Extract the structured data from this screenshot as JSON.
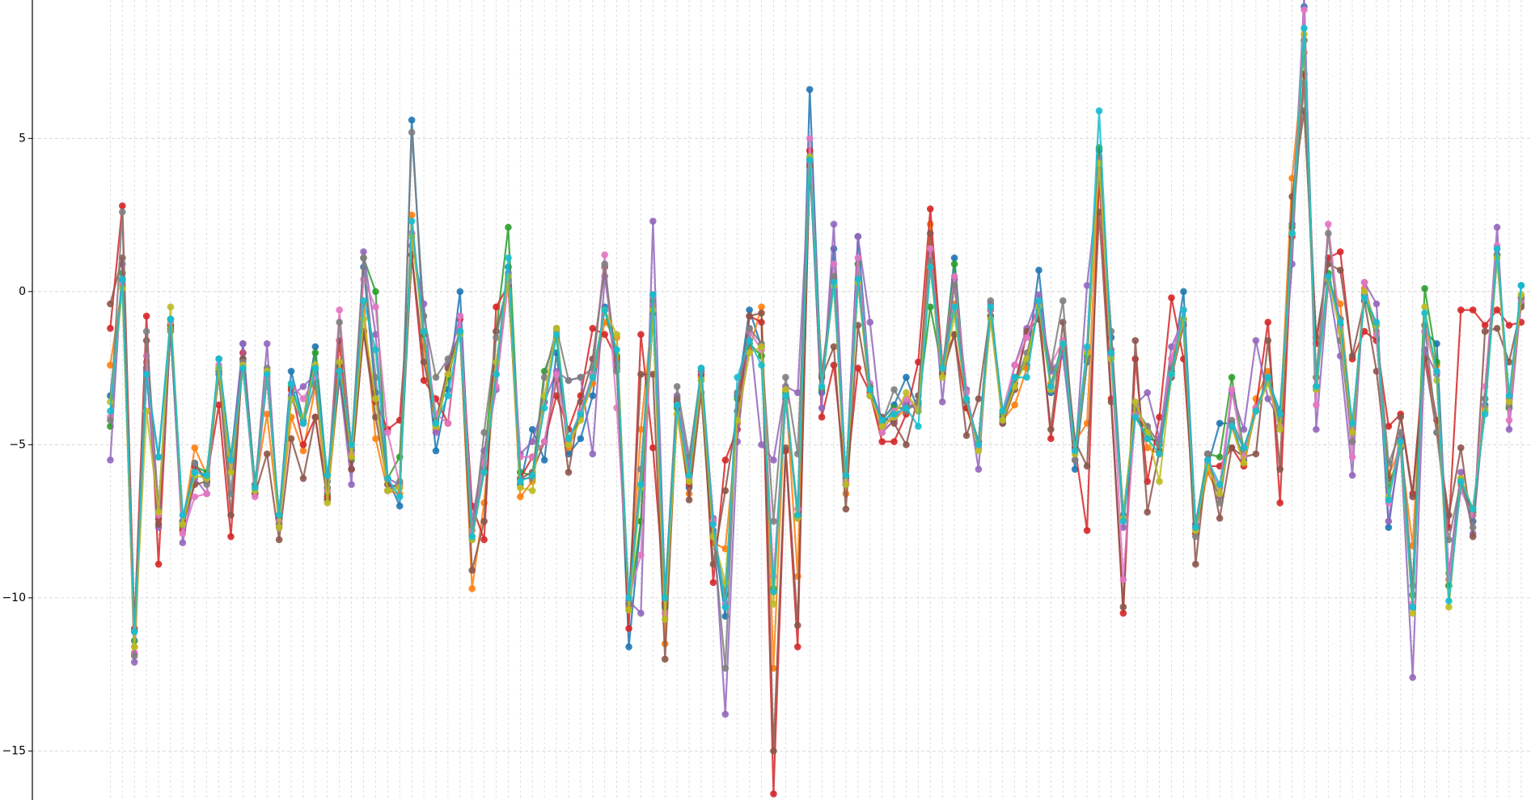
{
  "chart_data": {
    "type": "line",
    "ylim": [
      -16.6,
      9.52
    ],
    "yticks": [
      {
        "value": -15,
        "label": "−15"
      },
      {
        "value": -10,
        "label": "−10"
      },
      {
        "value": -5,
        "label": "−5"
      },
      0,
      5
    ],
    "grid": true,
    "series": [
      {
        "color": "#1f77b4",
        "values": [
          -3.4,
          0.4,
          -11.1,
          -2.7,
          -5.4,
          -0.9,
          -7.5,
          -5.6,
          -6.2,
          -2.2,
          -5.5,
          -1.7,
          -6.3,
          -2.6,
          -7.3,
          -2.6,
          -4.2,
          -1.8,
          -6.2,
          -2.4,
          -5.2,
          0.8,
          -3.3,
          -6.1,
          -7,
          5.6,
          -1.4,
          -5.2,
          -3.2,
          0,
          -8,
          -5.8,
          -2.7,
          0.8,
          -6.3,
          -4.5,
          -5.5,
          -2,
          -5.3,
          -4.8,
          -3.4,
          -0.5,
          -2.3,
          -11.6,
          -7.5,
          -0.1,
          -10.2,
          -3.6,
          -6.4,
          -2.6,
          -7.8,
          -10.6,
          -3.4,
          -0.6,
          -1.8,
          -9.8,
          -3.5,
          -7.4,
          6.6,
          -3.3,
          1.4,
          -6.2,
          1.8,
          -3.1,
          -4.2,
          -3.7,
          -2.8,
          -3.9,
          1.1,
          -2.7,
          1.1,
          -3.6,
          -5,
          -0.6,
          -4.1,
          -2.8,
          -2.4,
          0.7,
          -3.3,
          -1.7,
          -5.8,
          -2.3,
          4.6,
          -1.5,
          -7.3,
          -4,
          -4.8,
          -4.9,
          -2.6,
          0,
          -7.7,
          -5.7,
          -4.3,
          -4.3,
          -5.5,
          -3.9,
          -2.9,
          -3.9,
          2.2,
          9.3,
          -3.2,
          0.5,
          -0.9,
          -4.6,
          0,
          -1.1,
          -7.7,
          -4.8,
          -10.3,
          -1.3,
          -1.7,
          -9.6,
          -6.1,
          -7.5,
          -3.7,
          1.4,
          -3.8,
          0.2
        ]
      },
      {
        "color": "#ff7f0e",
        "values": [
          -2.4,
          0.2,
          -11.6,
          -2.3,
          -7.3,
          -1.2,
          -7.6,
          -5.1,
          -6,
          -2.6,
          -5.8,
          -2.5,
          -6.4,
          -4,
          -7.6,
          -4.1,
          -5.2,
          -3.1,
          -6.8,
          -2.8,
          -5.4,
          -0.4,
          -4.8,
          -6.5,
          -6.6,
          2.5,
          -1.8,
          -4.5,
          -2.7,
          -1.3,
          -9.7,
          -6.9,
          -2.4,
          0.5,
          -6.7,
          -6.2,
          -3.6,
          -1.3,
          -5.1,
          -4.1,
          -3,
          -1,
          -1.5,
          -10.3,
          -4.5,
          -0.5,
          -11.5,
          -4,
          -6.6,
          -2.8,
          -8.2,
          -8.4,
          -4.3,
          -1.9,
          -0.5,
          -12.3,
          -3.2,
          -9.3,
          4.3,
          -2.7,
          0.3,
          -6.6,
          0.3,
          -3.4,
          -4.6,
          -4.2,
          -3.8,
          -3.6,
          2.2,
          -2.6,
          -0.4,
          -3.8,
          -5.1,
          -0.8,
          -4.2,
          -3.7,
          -2.5,
          -0.4,
          -3,
          -1.7,
          -4.9,
          -4.3,
          4,
          -2.2,
          -7.4,
          -3.8,
          -5.1,
          -5.3,
          -2.2,
          -0.9,
          -7.9,
          -5.9,
          -6.7,
          -4.4,
          -5.6,
          -3.5,
          -2.6,
          -4.4,
          3.7,
          7.8,
          -2.8,
          0.3,
          -0.4,
          -4.5,
          0.1,
          -1.3,
          -6,
          -5.1,
          -8.3,
          -1.1,
          -2.4,
          -9.4,
          -6.3,
          -7.3,
          -3.8,
          1.2,
          -3.5,
          -0.2
        ]
      },
      {
        "color": "#2ca02c",
        "values": [
          -4.4,
          0.6,
          -11.4,
          -2.5,
          -7.4,
          -1.1,
          -7.7,
          -5.7,
          -5.9,
          -2.5,
          -5.4,
          -2.2,
          -6.3,
          -2.8,
          -7.4,
          -3.1,
          -4.3,
          -2,
          -6.6,
          -2.7,
          -5.5,
          1.1,
          0,
          -6.1,
          -5.4,
          1.9,
          -1.4,
          -4.4,
          -2.8,
          -1.3,
          -7.8,
          -5.6,
          -1.3,
          2.1,
          -5.9,
          -6,
          -2.6,
          -1.5,
          -4.9,
          -4,
          -2.7,
          -0.6,
          -2.1,
          -10.4,
          -7.5,
          -0.7,
          -10.3,
          -3.8,
          -6.2,
          -2.9,
          -8,
          -9.9,
          -3.5,
          -1.7,
          -2.1,
          -9.7,
          -3.3,
          -7.3,
          4.4,
          -3.2,
          0.4,
          -6.1,
          0.9,
          -3.2,
          -4.4,
          -3.8,
          -3.8,
          -3.7,
          -0.5,
          -2.6,
          0.9,
          -3.6,
          -4.9,
          -0.6,
          -4,
          -3,
          -2.2,
          -0.6,
          -3.1,
          -1.6,
          -5.1,
          -2.1,
          4.7,
          -2.1,
          -7.4,
          -4.1,
          -4.5,
          -5.2,
          -2.6,
          -0.9,
          -7.6,
          -5.3,
          -5.4,
          -2.8,
          -5.2,
          -3.9,
          -2.9,
          -4.4,
          2.1,
          8.2,
          -3.1,
          0.6,
          -1.1,
          -4.6,
          -0.1,
          -1.5,
          -6.4,
          -5.1,
          -9.9,
          0.1,
          -2.3,
          -9.6,
          -6.1,
          -7.2,
          -3.9,
          1.2,
          -3.8,
          -0.4
        ]
      },
      {
        "color": "#d62728",
        "values": [
          -1.2,
          2.8,
          -11,
          -0.8,
          -8.9,
          -1.1,
          -7.8,
          -5.7,
          -6.1,
          -3.7,
          -8,
          -2,
          -6.6,
          -2.8,
          -7.4,
          -3.2,
          -5,
          -4.1,
          -6.7,
          -1.6,
          -5.8,
          -1.3,
          -3.6,
          -4.5,
          -4.2,
          1.2,
          -2.9,
          -3.5,
          -4.3,
          -0.9,
          -7,
          -8.1,
          -0.5,
          0.2,
          -6.1,
          -5.4,
          -4.9,
          -3.4,
          -4.5,
          -3.4,
          -1.2,
          -1.4,
          -2.2,
          -11,
          -1.4,
          -5.1,
          -10.2,
          -3.6,
          -6.3,
          -2.7,
          -9.5,
          -5.5,
          -4.5,
          -0.8,
          -1,
          -16.4,
          -5.2,
          -11.6,
          4.6,
          -4.1,
          -2.4,
          -6.3,
          -2.5,
          -3.3,
          -4.9,
          -4.9,
          -4,
          -2.3,
          2.7,
          -2.4,
          -1.4,
          -3.8,
          -4.9,
          -0.8,
          -4.2,
          -3,
          -1.4,
          -0.5,
          -4.8,
          -1.7,
          -5.1,
          -7.8,
          3.8,
          -3.5,
          -10.5,
          -2.2,
          -6.2,
          -4.1,
          -0.2,
          -2.2,
          -7.9,
          -5.7,
          -5.7,
          -5.1,
          -5.7,
          -3.8,
          -1,
          -6.9,
          1.8,
          7.1,
          -1.7,
          1.1,
          1.3,
          -2.2,
          -1.3,
          -1.6,
          -4.4,
          -4,
          -6.6,
          -1.9,
          -4.2,
          -7.7,
          -0.6,
          -0.6,
          -1.1,
          -0.6,
          -1.1,
          -1
        ]
      },
      {
        "color": "#9467bd",
        "values": [
          -5.5,
          0.9,
          -12.1,
          -2.6,
          -7.7,
          -1.3,
          -8.2,
          -6.1,
          -6.6,
          -2.5,
          -5.6,
          -1.7,
          -6.5,
          -1.7,
          -7.7,
          -3.4,
          -3.1,
          -2.7,
          -6.4,
          -2.8,
          -6.3,
          1.3,
          -1.4,
          -6.1,
          -6.3,
          1.5,
          -0.4,
          -4.6,
          -2.4,
          -0.8,
          -7.5,
          -5.2,
          -3.2,
          0.6,
          -5.3,
          -4.9,
          -3.6,
          -2.6,
          -2.9,
          -2.8,
          -5.3,
          0.5,
          -2.4,
          -10.1,
          -10.5,
          2.3,
          -9.9,
          -3.4,
          -5.7,
          -2.5,
          -7.4,
          -13.8,
          -4.9,
          -1.2,
          -5,
          -5.5,
          -3.1,
          -3.3,
          4.2,
          -3.8,
          2.2,
          -6.3,
          1.8,
          -1,
          -4.6,
          -4.2,
          -3.6,
          -3.9,
          1.3,
          -3.6,
          0.4,
          -3.2,
          -5.8,
          -0.4,
          -4.3,
          -2.4,
          -1.2,
          -0.1,
          -2.6,
          -2.1,
          -5.5,
          0.2,
          3.8,
          -1.9,
          -7.7,
          -3.7,
          -3.3,
          -4.8,
          -1.8,
          -0.9,
          -7.6,
          -5.5,
          -6.7,
          -3.3,
          -4.5,
          -1.6,
          -3.5,
          -4.2,
          0.9,
          9.7,
          -4.5,
          0.3,
          -2.1,
          -6,
          0.3,
          -0.4,
          -7.5,
          -5,
          -12.6,
          -1.9,
          -2.7,
          -9.2,
          -5.9,
          -7.9,
          -3.5,
          2.1,
          -4.5,
          -0.2
        ]
      },
      {
        "color": "#8c564b",
        "values": [
          -0.4,
          1.1,
          -11.8,
          -1.6,
          -7.6,
          -1.2,
          -7.6,
          -6.3,
          -6.2,
          -2.7,
          -7.3,
          -2.2,
          -6.6,
          -5.3,
          -8.1,
          -4.8,
          -6.1,
          -4.1,
          -6.8,
          -2.6,
          -5.8,
          -1.3,
          -4.1,
          -6.3,
          -6.4,
          1.2,
          -2.3,
          -4.2,
          -2.5,
          -1.3,
          -9.1,
          -7.5,
          -1.3,
          0.3,
          -6.1,
          -5.9,
          -4.9,
          -2.9,
          -5.9,
          -3.6,
          -2.2,
          0.8,
          -2.5,
          -10.2,
          -2.7,
          -2.7,
          -12,
          -3.5,
          -6.8,
          -3.3,
          -8.9,
          -6.5,
          -3.9,
          -0.8,
          -0.7,
          -15,
          -5.1,
          -10.9,
          4.1,
          -2.8,
          -1.8,
          -7.1,
          -1.1,
          -3.4,
          -4.1,
          -4.3,
          -5,
          -3.4,
          1.9,
          -2.7,
          -1.4,
          -4.7,
          -3.5,
          -0.6,
          -4.3,
          -3.2,
          -1.3,
          -0.9,
          -4.5,
          -1,
          -4.9,
          -5.7,
          2.6,
          -3.6,
          -10.3,
          -1.6,
          -7.2,
          -5.2,
          -2.8,
          -1.1,
          -8.9,
          -5.3,
          -7.4,
          -5.1,
          -5.4,
          -5.3,
          -1.6,
          -5.8,
          3.1,
          5.9,
          -1.5,
          0.9,
          0.7,
          -2.1,
          -0.3,
          -2.6,
          -6.1,
          -4.1,
          -6.7,
          -2.2,
          -4.6,
          -7.3,
          -5.1,
          -8,
          -1.3,
          -1.2,
          -2.3,
          -0.5
        ]
      },
      {
        "color": "#e377c2",
        "values": [
          -4.1,
          0.3,
          -11.8,
          -2.1,
          -7.3,
          -1,
          -7.9,
          -6.7,
          -6.6,
          -2.4,
          -5.7,
          -2.4,
          -6.7,
          -2.8,
          -7.5,
          -3,
          -3.5,
          -2.8,
          -6.5,
          -0.6,
          -5.3,
          0.4,
          -0.5,
          -4.6,
          -6.3,
          1.9,
          -1.3,
          -4,
          -4.3,
          -0.8,
          -7.8,
          -5.6,
          -3.1,
          0.3,
          -5.4,
          -5.4,
          -4.9,
          -2.7,
          -4.9,
          -3.9,
          -2.7,
          1.2,
          -3.8,
          -10,
          -8.6,
          -0.2,
          -10.5,
          -3.7,
          -6.1,
          -2.6,
          -7.5,
          -10.2,
          -3.3,
          -1.3,
          -1.9,
          -9.3,
          -3.6,
          -7.1,
          5,
          -3.1,
          0.9,
          -6.2,
          1.1,
          -3,
          -4.6,
          -3.9,
          -3.5,
          -3.8,
          1.4,
          -2.5,
          0.5,
          -3.3,
          -5.1,
          -0.6,
          -3.9,
          -2.4,
          -1.5,
          -0.5,
          -2.4,
          -1.6,
          -5.2,
          -1.9,
          4.3,
          -2.1,
          -9.4,
          -4,
          -4.4,
          -5,
          -2.2,
          -0.6,
          -7.8,
          -5.6,
          -6.4,
          -3.2,
          -5.4,
          -3.8,
          -2.9,
          -4.4,
          1.9,
          9.2,
          -3.7,
          2.2,
          -1.2,
          -5.4,
          0.3,
          -1.4,
          -6.9,
          -4.6,
          -10.2,
          -1.3,
          -2.6,
          -9.4,
          -6.5,
          -7.3,
          -3.1,
          1.5,
          -4.2,
          -0.3
        ]
      },
      {
        "color": "#7f7f7f",
        "values": [
          -4.2,
          2.6,
          -11.9,
          -1.3,
          -7.1,
          -1.2,
          -7.6,
          -5.6,
          -6.3,
          -2.6,
          -6.6,
          -2.3,
          -6.3,
          -2.5,
          -7.6,
          -3.5,
          -4.3,
          -3,
          -6.4,
          -1,
          -5.1,
          1.1,
          -2.8,
          -6.5,
          -6.2,
          5.2,
          -0.8,
          -2.8,
          -2.2,
          -1.4,
          -8.1,
          -4.6,
          -1.5,
          0.4,
          -6.1,
          -6.1,
          -2.8,
          -1.2,
          -2.9,
          -2.8,
          -2.5,
          0.9,
          -2.6,
          -10.2,
          -5.8,
          -0.3,
          -9.9,
          -3.1,
          -5.4,
          -2.6,
          -7.9,
          -12.3,
          -3.3,
          -1.2,
          -1.7,
          -7.5,
          -2.8,
          -5.3,
          4.3,
          -2.7,
          0.5,
          -6.3,
          0.4,
          -3.1,
          -4.3,
          -3.2,
          -3.9,
          -3.6,
          1,
          -2.5,
          0.2,
          -3.6,
          -4.9,
          -0.3,
          -4.2,
          -3,
          -2,
          -0.6,
          -2.5,
          -0.3,
          -5.5,
          -2.2,
          4.4,
          -1.3,
          -7.3,
          -3.8,
          -4.4,
          -5,
          -2.5,
          -1,
          -8,
          -5.3,
          -6.9,
          -4.2,
          -5.1,
          -3.9,
          -2.8,
          -4.2,
          1.9,
          6.8,
          -2.8,
          1.9,
          -1.6,
          -4.9,
          -0.1,
          -1.1,
          -5.6,
          -4.6,
          -9.6,
          -1.1,
          -4.6,
          -8.1,
          -6.2,
          -7.7,
          -3.5,
          1.1,
          -3.7,
          -0.2
        ]
      },
      {
        "color": "#bcbd22",
        "values": [
          -3.6,
          0.1,
          -11.6,
          -3.9,
          -7.2,
          -0.5,
          -7.6,
          -6,
          -6.1,
          -2.5,
          -5.9,
          -2.4,
          -6.5,
          -2.6,
          -7.7,
          -3.5,
          -4.1,
          -2.4,
          -6.9,
          -2.3,
          -5.4,
          -0.9,
          -3.5,
          -6.5,
          -6.4,
          1.8,
          -1.3,
          -4.4,
          -2.7,
          -1.4,
          -8.1,
          -5.9,
          -2.3,
          0.5,
          -6.4,
          -6.5,
          -3.4,
          -1.2,
          -5,
          -4.2,
          -2.8,
          -0.6,
          -1.4,
          -10.4,
          -6.4,
          -0.6,
          -10.7,
          -4,
          -6.2,
          -2.9,
          -8,
          -9.5,
          -4.2,
          -2,
          -1.8,
          -10.2,
          -3.2,
          -7.4,
          4.4,
          -3.1,
          0.2,
          -6.3,
          0.3,
          -3.4,
          -4.4,
          -4.1,
          -3.3,
          -3.9,
          0.8,
          -2.8,
          -0.8,
          -3.5,
          -5.2,
          -0.9,
          -4.2,
          -3.1,
          -2.2,
          -0.5,
          -3.2,
          -1.7,
          -5.3,
          -2,
          4.2,
          -2.2,
          -7.4,
          -3.6,
          -4.6,
          -6.2,
          -2.7,
          -0.9,
          -7.8,
          -5.7,
          -6.6,
          -4.4,
          -5.6,
          -3.9,
          -3,
          -4.5,
          1.9,
          8.4,
          -3.2,
          0.4,
          -1.3,
          -4.6,
          0,
          -1.1,
          -6.7,
          -5,
          -10.5,
          -0.5,
          -2.9,
          -10.3,
          -6.1,
          -7.1,
          -3.9,
          1.1,
          -3.6,
          -0.1
        ]
      },
      {
        "color": "#17becf",
        "values": [
          -3.9,
          0.4,
          -11.1,
          -2.7,
          -5.4,
          -0.9,
          -7.3,
          -5.9,
          -6,
          -2.2,
          -5.5,
          -2.5,
          -6.4,
          -2.7,
          -7.3,
          -3,
          -4.3,
          -2.5,
          -6,
          -2.6,
          -5,
          -0.3,
          -1.9,
          -6.1,
          -6.7,
          2.3,
          -1.3,
          -4.3,
          -3.4,
          -1.3,
          -8,
          -5.9,
          -2.7,
          1.1,
          -6.2,
          -6,
          -3.8,
          -1.4,
          -4.8,
          -4,
          -2.8,
          -0.6,
          -1.9,
          -10,
          -6.3,
          -0.1,
          -10,
          -3.7,
          -6,
          -2.5,
          -7.6,
          -10.3,
          -2.8,
          -1.6,
          -2.4,
          -9.8,
          -3.4,
          -7.3,
          4.3,
          -3.1,
          0.3,
          -6,
          0.4,
          -3.2,
          -4.2,
          -4,
          -3.8,
          -4.4,
          0.8,
          -2.5,
          -0.5,
          -3.5,
          -5,
          -0.5,
          -3.9,
          -2.8,
          -2.8,
          -0.3,
          -3.1,
          -1.7,
          -5.2,
          -1.8,
          5.9,
          -2,
          -7.5,
          -4.1,
          -4.8,
          -5.3,
          -2.7,
          -0.6,
          -7.7,
          -5.5,
          -6.3,
          -4.4,
          -5.1,
          -3.9,
          -2.8,
          -4,
          1.9,
          8.6,
          -3.1,
          0.5,
          -1,
          -4.3,
          -0.2,
          -1,
          -6.8,
          -4.9,
          -10.3,
          -0.7,
          -2.6,
          -10.1,
          -6.2,
          -7.1,
          -4,
          1.4,
          -3.4,
          0.2
        ]
      }
    ]
  }
}
